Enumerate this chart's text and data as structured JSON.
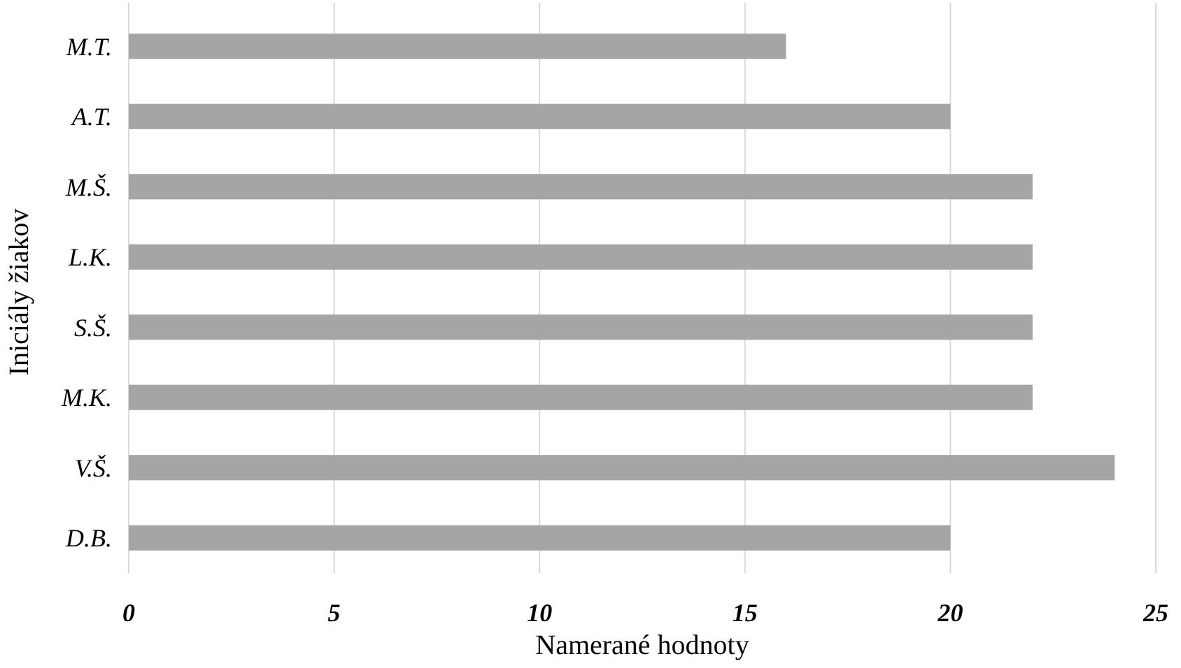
{
  "chart_data": {
    "type": "bar",
    "orientation": "horizontal",
    "xlabel": "Namerané hodnoty",
    "ylabel": "Iniciály žiakov",
    "categories": [
      "M.T.",
      "A.T.",
      "M.Š.",
      "L.K.",
      "S.Š.",
      "M.K.",
      "V.Š.",
      "D.B."
    ],
    "series": [
      {
        "color": "#a5a5a7",
        "values": [
          16,
          20,
          22,
          22,
          22,
          22,
          24,
          20
        ]
      }
    ],
    "xlim": [
      0,
      25
    ],
    "xticks": [
      0,
      5,
      10,
      15,
      20,
      25
    ],
    "grid": "x"
  }
}
